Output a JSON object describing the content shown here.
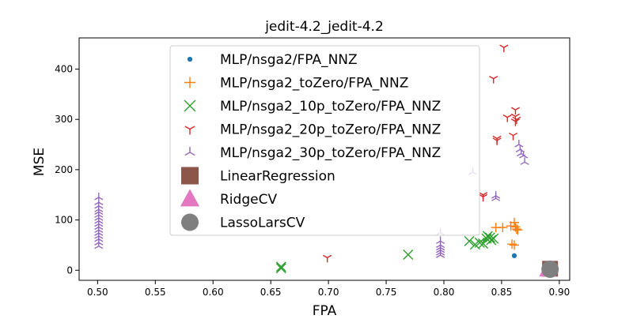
{
  "chart_data": {
    "type": "scatter",
    "title": "jedit-4.2_jedit-4.2",
    "xlabel": "FPA",
    "ylabel": "MSE",
    "xlim": [
      0.484,
      0.909
    ],
    "ylim": [
      -20,
      462
    ],
    "xticks": [
      0.5,
      0.55,
      0.6,
      0.65,
      0.7,
      0.75,
      0.8,
      0.85,
      0.9
    ],
    "xtick_labels": [
      "0.50",
      "0.55",
      "0.60",
      "0.65",
      "0.70",
      "0.75",
      "0.80",
      "0.85",
      "0.90"
    ],
    "yticks": [
      0,
      100,
      200,
      300,
      400
    ],
    "ytick_labels": [
      "0",
      "100",
      "200",
      "300",
      "400"
    ],
    "grid": false,
    "legend_position": "upper-center",
    "series": [
      {
        "name": "MLP/nsga2/FPA_NNZ",
        "marker": "dot",
        "color": "#1f77b4",
        "points": [
          [
            0.861,
            29
          ]
        ]
      },
      {
        "name": "MLP/nsga2_toZero/FPA_NNZ",
        "marker": "plus",
        "color": "#ff7f0e",
        "points": [
          [
            0.845,
            85
          ],
          [
            0.851,
            85
          ],
          [
            0.858,
            88
          ],
          [
            0.861,
            95
          ],
          [
            0.862,
            86
          ],
          [
            0.863,
            82
          ],
          [
            0.864,
            80
          ],
          [
            0.859,
            52
          ],
          [
            0.861,
            50
          ]
        ]
      },
      {
        "name": "MLP/nsga2_10p_toZero/FPA_NNZ",
        "marker": "x",
        "color": "#2ca02c",
        "points": [
          [
            0.659,
            7
          ],
          [
            0.659,
            4
          ],
          [
            0.769,
            31
          ],
          [
            0.822,
            58
          ],
          [
            0.827,
            51
          ],
          [
            0.831,
            55
          ],
          [
            0.834,
            53
          ],
          [
            0.837,
            63
          ],
          [
            0.84,
            65
          ],
          [
            0.841,
            60
          ],
          [
            0.843,
            63
          ],
          [
            0.838,
            68
          ]
        ]
      },
      {
        "name": "MLP/nsga2_20p_toZero/FPA_NNZ",
        "marker": "tri_down",
        "color": "#d62728",
        "points": [
          [
            0.852,
            443
          ],
          [
            0.843,
            381
          ],
          [
            0.862,
            319
          ],
          [
            0.855,
            304
          ],
          [
            0.862,
            306
          ],
          [
            0.863,
            300
          ],
          [
            0.862,
            296
          ],
          [
            0.86,
            268
          ],
          [
            0.846,
            262
          ],
          [
            0.846,
            258
          ],
          [
            0.834,
            150
          ],
          [
            0.834,
            146
          ],
          [
            0.699,
            25
          ]
        ]
      },
      {
        "name": "MLP/nsga2_30p_toZero/FPA_NNZ",
        "marker": "tri_up",
        "color": "#9467bd",
        "points": [
          [
            0.501,
            145
          ],
          [
            0.501,
            135
          ],
          [
            0.501,
            128
          ],
          [
            0.501,
            121
          ],
          [
            0.501,
            116
          ],
          [
            0.501,
            110
          ],
          [
            0.501,
            104
          ],
          [
            0.501,
            98
          ],
          [
            0.501,
            92
          ],
          [
            0.501,
            86
          ],
          [
            0.501,
            80
          ],
          [
            0.501,
            74
          ],
          [
            0.501,
            68
          ],
          [
            0.501,
            62
          ],
          [
            0.501,
            55
          ],
          [
            0.501,
            48
          ],
          [
            0.797,
            75
          ],
          [
            0.797,
            58
          ],
          [
            0.797,
            50
          ],
          [
            0.797,
            45
          ],
          [
            0.797,
            40
          ],
          [
            0.797,
            35
          ],
          [
            0.797,
            30
          ],
          [
            0.825,
            195
          ],
          [
            0.845,
            148
          ],
          [
            0.845,
            143
          ],
          [
            0.865,
            250
          ],
          [
            0.866,
            240
          ],
          [
            0.867,
            232
          ],
          [
            0.869,
            228
          ],
          [
            0.87,
            215
          ]
        ]
      },
      {
        "name": "LinearRegression",
        "marker": "square",
        "color": "#8c564b",
        "points": [
          [
            0.892,
            3
          ]
        ]
      },
      {
        "name": "RidgeCV",
        "marker": "triangle",
        "color": "#e377c2",
        "points": [
          [
            0.89,
            1
          ]
        ]
      },
      {
        "name": "LassoLarsCV",
        "marker": "circle",
        "color": "#7f7f7f",
        "points": [
          [
            0.892,
            2
          ]
        ]
      }
    ]
  }
}
